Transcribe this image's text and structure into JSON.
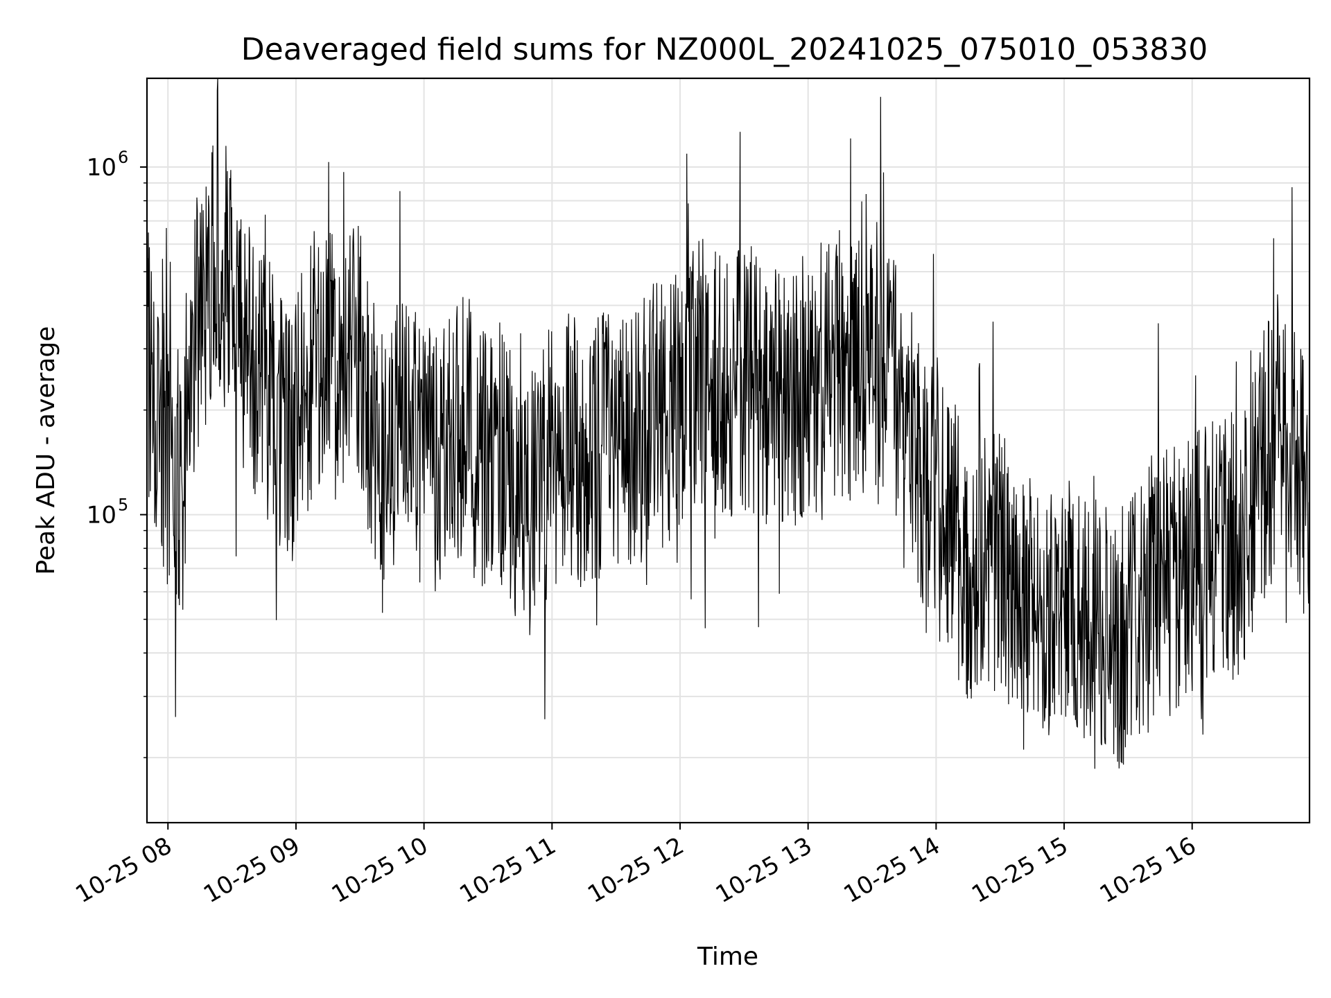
{
  "chart_data": {
    "type": "line",
    "title": "Deaveraged field sums for NZ000L_20241025_075010_053830",
    "xlabel": "Time",
    "ylabel": "Peak ADU - average",
    "x_scale": "time",
    "y_scale": "log",
    "xlim": [
      "2024-10-25 07:50:10",
      "2024-10-25 16:55:00"
    ],
    "ylim": [
      13000,
      1800000
    ],
    "x_ticks": [
      "10-25 08",
      "10-25 09",
      "10-25 10",
      "10-25 11",
      "10-25 12",
      "10-25 13",
      "10-25 14",
      "10-25 15",
      "10-25 16"
    ],
    "y_ticks": [
      {
        "base": "10",
        "exp": "5",
        "value": 100000
      },
      {
        "base": "10",
        "exp": "6",
        "value": 1000000
      }
    ],
    "grid": true,
    "line_color": "#000000",
    "series": [
      {
        "x": [
          "2024-10-25 07:50",
          "2024-10-25 07:55",
          "2024-10-25 08:00",
          "2024-10-25 08:05",
          "2024-10-25 08:10",
          "2024-10-25 08:15",
          "2024-10-25 08:20",
          "2024-10-25 08:25",
          "2024-10-25 08:30",
          "2024-10-25 08:35",
          "2024-10-25 08:40",
          "2024-10-25 08:45",
          "2024-10-25 08:50",
          "2024-10-25 08:55",
          "2024-10-25 09:00",
          "2024-10-25 09:05",
          "2024-10-25 09:10",
          "2024-10-25 09:15",
          "2024-10-25 09:20",
          "2024-10-25 09:25",
          "2024-10-25 09:30",
          "2024-10-25 09:35",
          "2024-10-25 09:40",
          "2024-10-25 09:45",
          "2024-10-25 09:50",
          "2024-10-25 09:55",
          "2024-10-25 10:00",
          "2024-10-25 10:05",
          "2024-10-25 10:10",
          "2024-10-25 10:15",
          "2024-10-25 10:20",
          "2024-10-25 10:25",
          "2024-10-25 10:30",
          "2024-10-25 10:35",
          "2024-10-25 10:40",
          "2024-10-25 10:45",
          "2024-10-25 10:50",
          "2024-10-25 10:55",
          "2024-10-25 11:00",
          "2024-10-25 11:05",
          "2024-10-25 11:10",
          "2024-10-25 11:15",
          "2024-10-25 11:20",
          "2024-10-25 11:25",
          "2024-10-25 11:30",
          "2024-10-25 11:35",
          "2024-10-25 11:40",
          "2024-10-25 11:45",
          "2024-10-25 11:50",
          "2024-10-25 11:55",
          "2024-10-25 12:00",
          "2024-10-25 12:05",
          "2024-10-25 12:10",
          "2024-10-25 12:15",
          "2024-10-25 12:20",
          "2024-10-25 12:25",
          "2024-10-25 12:30",
          "2024-10-25 12:35",
          "2024-10-25 12:40",
          "2024-10-25 12:45",
          "2024-10-25 12:50",
          "2024-10-25 12:55",
          "2024-10-25 13:00",
          "2024-10-25 13:05",
          "2024-10-25 13:10",
          "2024-10-25 13:15",
          "2024-10-25 13:20",
          "2024-10-25 13:25",
          "2024-10-25 13:30",
          "2024-10-25 13:35",
          "2024-10-25 13:40",
          "2024-10-25 13:45",
          "2024-10-25 13:50",
          "2024-10-25 13:55",
          "2024-10-25 14:00",
          "2024-10-25 14:05",
          "2024-10-25 14:10",
          "2024-10-25 14:15",
          "2024-10-25 14:20",
          "2024-10-25 14:25",
          "2024-10-25 14:30",
          "2024-10-25 14:35",
          "2024-10-25 14:40",
          "2024-10-25 14:45",
          "2024-10-25 14:50",
          "2024-10-25 14:55",
          "2024-10-25 15:00",
          "2024-10-25 15:05",
          "2024-10-25 15:10",
          "2024-10-25 15:15",
          "2024-10-25 15:20",
          "2024-10-25 15:25",
          "2024-10-25 15:30",
          "2024-10-25 15:35",
          "2024-10-25 15:40",
          "2024-10-25 15:45",
          "2024-10-25 15:50",
          "2024-10-25 15:55",
          "2024-10-25 16:00",
          "2024-10-25 16:05",
          "2024-10-25 16:10",
          "2024-10-25 16:15",
          "2024-10-25 16:20",
          "2024-10-25 16:25",
          "2024-10-25 16:30",
          "2024-10-25 16:35",
          "2024-10-25 16:40",
          "2024-10-25 16:45",
          "2024-10-25 16:50",
          "2024-10-25 16:55"
        ],
        "values": [
          300000,
          180000,
          150000,
          130000,
          210000,
          380000,
          460000,
          520000,
          440000,
          330000,
          280000,
          250000,
          210000,
          170000,
          180000,
          240000,
          280000,
          270000,
          260000,
          300000,
          280000,
          200000,
          160000,
          150000,
          170000,
          160000,
          150000,
          140000,
          160000,
          160000,
          180000,
          150000,
          140000,
          160000,
          130000,
          110000,
          100000,
          120000,
          150000,
          170000,
          160000,
          140000,
          150000,
          170000,
          160000,
          170000,
          180000,
          200000,
          190000,
          200000,
          220000,
          240000,
          260000,
          250000,
          230000,
          240000,
          240000,
          230000,
          220000,
          220000,
          210000,
          230000,
          240000,
          250000,
          260000,
          270000,
          270000,
          280000,
          300000,
          280000,
          250000,
          210000,
          160000,
          130000,
          110000,
          90000,
          80000,
          70000,
          70000,
          75000,
          70000,
          65000,
          60000,
          60000,
          55000,
          55000,
          52000,
          50000,
          50000,
          48000,
          46000,
          45000,
          48000,
          50000,
          55000,
          60000,
          65000,
          70000,
          72000,
          75000,
          78000,
          80000,
          82000,
          90000,
          110000,
          150000,
          180000,
          170000,
          130000,
          120000
        ]
      }
    ]
  }
}
